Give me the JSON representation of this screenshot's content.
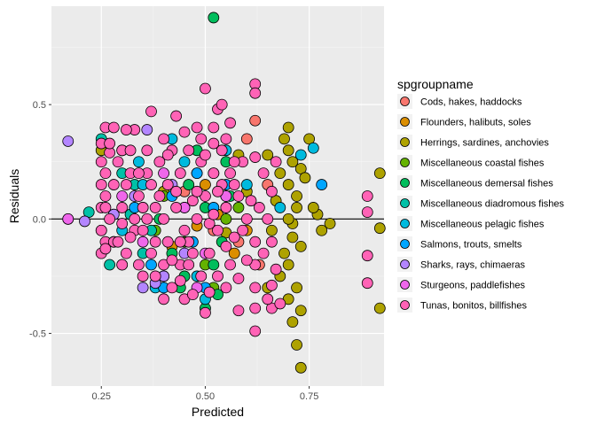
{
  "chart_data": {
    "type": "scatter",
    "xlabel": "Predicted",
    "ylabel": "Residuals",
    "xlim": [
      0.13,
      0.93
    ],
    "ylim": [
      -0.73,
      0.93
    ],
    "x_ticks": [
      0.25,
      0.5,
      0.75
    ],
    "x_tick_labels": [
      "0.25",
      "0.50",
      "0.75"
    ],
    "y_ticks": [
      -0.5,
      0.0,
      0.5
    ],
    "y_tick_labels": [
      "-0.5",
      "0.0",
      "0.5"
    ],
    "grid": true,
    "reference_line_y": 0,
    "legend": {
      "title": "spgroupname",
      "position": "right"
    },
    "series": [
      {
        "name": "Cods, hakes, haddocks",
        "color": "#F8766D",
        "points": [
          [
            0.62,
            0.43
          ],
          [
            0.6,
            0.35
          ],
          [
            0.65,
            0.15
          ],
          [
            0.55,
            0.05
          ],
          [
            0.58,
            -0.1
          ],
          [
            0.63,
            -0.2
          ],
          [
            0.45,
            0.12
          ],
          [
            0.52,
            -0.05
          ]
        ]
      },
      {
        "name": "Flounders, halibuts, soles",
        "color": "#DB8E00",
        "points": [
          [
            0.5,
            0.15
          ],
          [
            0.48,
            -0.03
          ],
          [
            0.55,
            0.1
          ],
          [
            0.45,
            0.05
          ],
          [
            0.6,
            -0.05
          ],
          [
            0.42,
            -0.12
          ],
          [
            0.53,
            0.02
          ],
          [
            0.57,
            -0.15
          ]
        ]
      },
      {
        "name": "Herrings, sardines, anchovies",
        "color": "#AEA200",
        "points": [
          [
            0.92,
            0.2
          ],
          [
            0.92,
            -0.04
          ],
          [
            0.92,
            -0.39
          ],
          [
            0.73,
            -0.65
          ],
          [
            0.72,
            -0.55
          ],
          [
            0.71,
            -0.45
          ],
          [
            0.72,
            0.1
          ],
          [
            0.68,
            0.2
          ],
          [
            0.7,
            0.4
          ],
          [
            0.75,
            0.35
          ],
          [
            0.7,
            0.3
          ],
          [
            0.73,
            0.22
          ],
          [
            0.7,
            0.15
          ],
          [
            0.72,
            0.05
          ],
          [
            0.71,
            -0.02
          ],
          [
            0.73,
            -0.12
          ],
          [
            0.7,
            -0.2
          ],
          [
            0.72,
            -0.3
          ],
          [
            0.7,
            -0.35
          ],
          [
            0.68,
            -0.25
          ],
          [
            0.65,
            0.28
          ],
          [
            0.67,
            0.08
          ],
          [
            0.74,
            0.18
          ],
          [
            0.71,
            -0.08
          ],
          [
            0.69,
            -0.15
          ],
          [
            0.73,
            -0.4
          ],
          [
            0.66,
            -0.05
          ],
          [
            0.8,
            -0.02
          ],
          [
            0.77,
            0.02
          ],
          [
            0.76,
            0.05
          ],
          [
            0.78,
            -0.05
          ],
          [
            0.69,
            0.35
          ],
          [
            0.71,
            0.25
          ],
          [
            0.7,
            0.0
          ],
          [
            0.6,
            0.12
          ],
          [
            0.58,
            0.28
          ],
          [
            0.55,
            -0.06
          ],
          [
            0.65,
            -0.3
          ],
          [
            0.3,
            0.3
          ],
          [
            0.35,
            0.05
          ],
          [
            0.25,
            0.3
          ],
          [
            0.4,
            0.12
          ]
        ]
      },
      {
        "name": "Miscellaneous coastal fishes",
        "color": "#64B200",
        "points": [
          [
            0.55,
            0.0
          ],
          [
            0.5,
            -0.2
          ],
          [
            0.45,
            -0.1
          ],
          [
            0.4,
            0.1
          ],
          [
            0.52,
            -0.3
          ],
          [
            0.38,
            -0.05
          ],
          [
            0.48,
            0.2
          ],
          [
            0.58,
            0.05
          ]
        ]
      },
      {
        "name": "Miscellaneous demersal fishes",
        "color": "#00BD5C",
        "points": [
          [
            0.52,
            0.88
          ],
          [
            0.5,
            -0.39
          ],
          [
            0.53,
            -0.33
          ],
          [
            0.55,
            0.25
          ],
          [
            0.45,
            -0.25
          ],
          [
            0.48,
            0.3
          ],
          [
            0.56,
            0.1
          ],
          [
            0.42,
            -0.15
          ],
          [
            0.5,
            0.05
          ],
          [
            0.46,
            0.15
          ],
          [
            0.44,
            -0.3
          ],
          [
            0.52,
            -0.2
          ],
          [
            0.39,
            0.0
          ],
          [
            0.54,
            -0.1
          ]
        ]
      },
      {
        "name": "Miscellaneous diadromous fishes",
        "color": "#00C1A7",
        "points": [
          [
            0.25,
            0.35
          ],
          [
            0.28,
            -0.1
          ],
          [
            0.32,
            0.02
          ],
          [
            0.35,
            -0.15
          ],
          [
            0.3,
            0.2
          ],
          [
            0.4,
            -0.25
          ],
          [
            0.22,
            0.03
          ],
          [
            0.33,
            0.15
          ],
          [
            0.37,
            -0.05
          ],
          [
            0.27,
            -0.2
          ]
        ]
      },
      {
        "name": "Miscellaneous pelagic fishes",
        "color": "#00BADE",
        "points": [
          [
            0.76,
            0.31
          ],
          [
            0.73,
            0.28
          ],
          [
            0.68,
            0.05
          ],
          [
            0.6,
            0.15
          ],
          [
            0.55,
            0.3
          ],
          [
            0.5,
            -0.35
          ],
          [
            0.45,
            0.25
          ],
          [
            0.35,
            0.15
          ],
          [
            0.38,
            -0.3
          ],
          [
            0.42,
            0.35
          ],
          [
            0.48,
            -0.25
          ],
          [
            0.52,
            0.2
          ],
          [
            0.3,
            -0.05
          ],
          [
            0.34,
            0.25
          ]
        ]
      },
      {
        "name": "Salmons, trouts, smelts",
        "color": "#00A6FF",
        "points": [
          [
            0.78,
            0.15
          ],
          [
            0.48,
            0.2
          ],
          [
            0.5,
            -0.3
          ],
          [
            0.42,
            0.1
          ],
          [
            0.37,
            -0.2
          ],
          [
            0.55,
            0.15
          ],
          [
            0.33,
            0.05
          ],
          [
            0.47,
            -0.1
          ],
          [
            0.52,
            0.05
          ],
          [
            0.4,
            -0.3
          ]
        ]
      },
      {
        "name": "Sharks, rays, chimaeras",
        "color": "#B385FF",
        "points": [
          [
            0.17,
            0.34
          ],
          [
            0.17,
            0.0
          ],
          [
            0.21,
            -0.01
          ],
          [
            0.36,
            0.39
          ],
          [
            0.35,
            -0.3
          ],
          [
            0.38,
            -0.28
          ],
          [
            0.3,
            -0.2
          ],
          [
            0.4,
            -0.25
          ],
          [
            0.33,
            0.1
          ],
          [
            0.28,
            0.02
          ],
          [
            0.42,
            0.15
          ],
          [
            0.45,
            -0.15
          ],
          [
            0.25,
            -0.05
          ]
        ]
      },
      {
        "name": "Sturgeons, paddlefishes",
        "color": "#EF67EB",
        "points": [
          [
            0.17,
            0.0
          ],
          [
            0.45,
            0.05
          ],
          [
            0.5,
            -0.15
          ],
          [
            0.4,
            0.2
          ],
          [
            0.55,
            0.1
          ],
          [
            0.35,
            -0.1
          ],
          [
            0.3,
            0.1
          ],
          [
            0.48,
            -0.3
          ]
        ]
      },
      {
        "name": "Tunas, bonitos, billfishes",
        "color": "#FF63B6",
        "points": [
          [
            0.5,
            0.57
          ],
          [
            0.62,
            0.59
          ],
          [
            0.62,
            0.55
          ],
          [
            0.53,
            0.48
          ],
          [
            0.54,
            0.5
          ],
          [
            0.43,
            0.45
          ],
          [
            0.37,
            0.47
          ],
          [
            0.48,
            0.4
          ],
          [
            0.62,
            0.27
          ],
          [
            0.55,
            0.35
          ],
          [
            0.42,
            0.3
          ],
          [
            0.33,
            0.39
          ],
          [
            0.26,
            0.4
          ],
          [
            0.28,
            0.4
          ],
          [
            0.31,
            0.39
          ],
          [
            0.25,
            0.33
          ],
          [
            0.27,
            0.29
          ],
          [
            0.25,
            0.25
          ],
          [
            0.26,
            0.2
          ],
          [
            0.25,
            0.15
          ],
          [
            0.26,
            0.1
          ],
          [
            0.25,
            0.05
          ],
          [
            0.27,
            0.0
          ],
          [
            0.25,
            -0.05
          ],
          [
            0.26,
            -0.1
          ],
          [
            0.25,
            -0.15
          ],
          [
            0.3,
            0.3
          ],
          [
            0.32,
            0.2
          ],
          [
            0.34,
            0.1
          ],
          [
            0.36,
            0.0
          ],
          [
            0.38,
            -0.1
          ],
          [
            0.4,
            -0.2
          ],
          [
            0.42,
            -0.3
          ],
          [
            0.44,
            -0.2
          ],
          [
            0.46,
            -0.1
          ],
          [
            0.48,
            0.0
          ],
          [
            0.5,
            0.1
          ],
          [
            0.52,
            0.2
          ],
          [
            0.54,
            0.3
          ],
          [
            0.56,
            0.2
          ],
          [
            0.58,
            0.1
          ],
          [
            0.6,
            0.0
          ],
          [
            0.62,
            -0.1
          ],
          [
            0.62,
            -0.2
          ],
          [
            0.62,
            -0.3
          ],
          [
            0.62,
            -0.39
          ],
          [
            0.62,
            -0.49
          ],
          [
            0.66,
            -0.39
          ],
          [
            0.68,
            -0.37
          ],
          [
            0.65,
            -0.35
          ],
          [
            0.66,
            -0.29
          ],
          [
            0.67,
            -0.22
          ],
          [
            0.64,
            -0.15
          ],
          [
            0.66,
            -0.1
          ],
          [
            0.65,
            0.0
          ],
          [
            0.63,
            0.05
          ],
          [
            0.66,
            0.12
          ],
          [
            0.67,
            0.25
          ],
          [
            0.64,
            0.2
          ],
          [
            0.89,
            0.1
          ],
          [
            0.89,
            0.03
          ],
          [
            0.89,
            -0.16
          ],
          [
            0.89,
            -0.28
          ],
          [
            0.58,
            -0.4
          ],
          [
            0.55,
            -0.3
          ],
          [
            0.5,
            -0.41
          ],
          [
            0.45,
            -0.35
          ],
          [
            0.4,
            -0.35
          ],
          [
            0.35,
            -0.25
          ],
          [
            0.3,
            -0.2
          ],
          [
            0.28,
            -0.1
          ],
          [
            0.33,
            -0.05
          ],
          [
            0.35,
            0.05
          ],
          [
            0.37,
            0.15
          ],
          [
            0.39,
            0.25
          ],
          [
            0.41,
            0.15
          ],
          [
            0.43,
            0.05
          ],
          [
            0.45,
            -0.05
          ],
          [
            0.47,
            -0.15
          ],
          [
            0.49,
            -0.25
          ],
          [
            0.51,
            -0.15
          ],
          [
            0.53,
            -0.05
          ],
          [
            0.55,
            0.05
          ],
          [
            0.57,
            0.15
          ],
          [
            0.59,
            0.25
          ],
          [
            0.52,
            0.33
          ],
          [
            0.46,
            0.3
          ],
          [
            0.4,
            0.35
          ],
          [
            0.36,
            0.3
          ],
          [
            0.32,
            0.3
          ],
          [
            0.3,
            0.05
          ],
          [
            0.29,
            -0.1
          ],
          [
            0.31,
            -0.15
          ],
          [
            0.34,
            -0.2
          ],
          [
            0.38,
            -0.25
          ],
          [
            0.44,
            -0.27
          ],
          [
            0.47,
            -0.33
          ],
          [
            0.51,
            -0.32
          ],
          [
            0.53,
            -0.25
          ],
          [
            0.56,
            -0.2
          ],
          [
            0.58,
            -0.26
          ],
          [
            0.6,
            -0.18
          ],
          [
            0.57,
            -0.08
          ],
          [
            0.54,
            0.15
          ],
          [
            0.49,
            0.25
          ],
          [
            0.44,
            0.2
          ],
          [
            0.39,
            0.1
          ],
          [
            0.35,
            -0.05
          ],
          [
            0.37,
            -0.15
          ],
          [
            0.41,
            -0.1
          ],
          [
            0.43,
            0.12
          ],
          [
            0.47,
            0.08
          ],
          [
            0.51,
            -0.02
          ],
          [
            0.55,
            -0.12
          ],
          [
            0.59,
            -0.05
          ],
          [
            0.61,
            0.08
          ],
          [
            0.57,
            0.25
          ],
          [
            0.53,
            0.12
          ],
          [
            0.27,
            0.33
          ],
          [
            0.29,
            0.25
          ],
          [
            0.31,
            0.15
          ],
          [
            0.33,
            0.0
          ],
          [
            0.26,
            -0.13
          ],
          [
            0.28,
            0.15
          ],
          [
            0.32,
            -0.08
          ],
          [
            0.36,
            0.2
          ],
          [
            0.4,
            0.0
          ],
          [
            0.44,
            -0.1
          ],
          [
            0.48,
            0.12
          ],
          [
            0.52,
            0.02
          ],
          [
            0.46,
            -0.2
          ],
          [
            0.42,
            -0.18
          ],
          [
            0.38,
            0.05
          ],
          [
            0.34,
            0.2
          ],
          [
            0.3,
            -0.02
          ],
          [
            0.26,
            0.05
          ],
          [
            0.41,
            0.28
          ],
          [
            0.45,
            0.38
          ],
          [
            0.49,
            0.35
          ],
          [
            0.5,
            0.28
          ],
          [
            0.56,
            0.42
          ],
          [
            0.52,
            0.4
          ]
        ]
      }
    ]
  }
}
